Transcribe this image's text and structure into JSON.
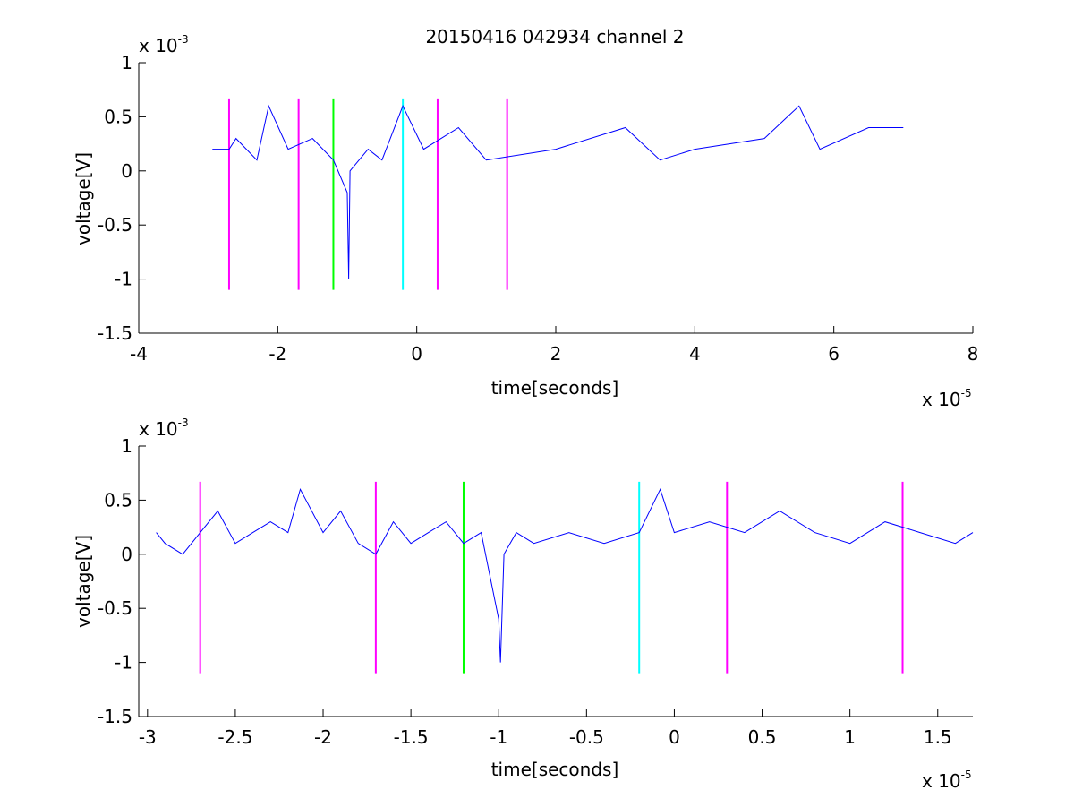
{
  "figure": {
    "title": "20150416 042934 channel 2"
  },
  "chart_data": [
    {
      "type": "line",
      "title": "20150416 042934 channel 2",
      "xlabel": "time[seconds]",
      "ylabel": "voltage[V]",
      "x_exponent_label": "x 10",
      "x_exponent": "-5",
      "y_exponent_label": "x 10",
      "y_exponent": "-3",
      "xlim": [
        -4,
        8
      ],
      "ylim": [
        -1.5,
        1
      ],
      "xticks": [
        "-4",
        "-2",
        "0",
        "2",
        "4",
        "6",
        "8"
      ],
      "yticks": [
        "1",
        "0.5",
        "0",
        "-0.5",
        "-1",
        "-1.5"
      ],
      "grid": false,
      "series": [
        {
          "style": "blue noisy trace",
          "color": "#0000ff",
          "x": [
            -2.94,
            -2.7,
            -2.6,
            -2.3,
            -2.13,
            -1.85,
            -1.5,
            -1.2,
            -1.0,
            -0.98,
            -0.96,
            -0.7,
            -0.5,
            -0.2,
            0.1,
            0.6,
            1.0,
            2.0,
            3.0,
            3.5,
            4.0,
            5.0,
            5.5,
            5.8,
            6.5,
            7.0
          ],
          "y": [
            0.2,
            0.2,
            0.3,
            0.1,
            0.6,
            0.2,
            0.3,
            0.1,
            -0.2,
            -1.0,
            0.0,
            0.2,
            0.1,
            0.6,
            0.2,
            0.4,
            0.1,
            0.2,
            0.4,
            0.1,
            0.2,
            0.3,
            0.6,
            0.2,
            0.4,
            0.4
          ]
        }
      ],
      "markers": [
        {
          "x": -2.7,
          "color": "#ff00ff"
        },
        {
          "x": -1.7,
          "color": "#ff00ff"
        },
        {
          "x": -1.2,
          "color": "#00ff00"
        },
        {
          "x": -0.2,
          "color": "#00ffff"
        },
        {
          "x": 0.3,
          "color": "#ff00ff"
        },
        {
          "x": 1.3,
          "color": "#ff00ff"
        }
      ],
      "marker_range": [
        -1.1,
        0.67
      ]
    },
    {
      "type": "line",
      "title": "",
      "xlabel": "time[seconds]",
      "ylabel": "voltage[V]",
      "x_exponent_label": "x 10",
      "x_exponent": "-5",
      "y_exponent_label": "x 10",
      "y_exponent": "-3",
      "xlim": [
        -3.05,
        1.7
      ],
      "ylim": [
        -1.5,
        1
      ],
      "xticks": [
        "-3",
        "-2.5",
        "-2",
        "-1.5",
        "-1",
        "-0.5",
        "0",
        "0.5",
        "1",
        "1.5"
      ],
      "xtick_values": [
        -3,
        -2.5,
        -2,
        -1.5,
        -1,
        -0.5,
        0,
        0.5,
        1,
        1.5
      ],
      "yticks": [
        "1",
        "0.5",
        "0",
        "-0.5",
        "-1",
        "-1.5"
      ],
      "grid": false,
      "series": [
        {
          "style": "blue noisy trace",
          "color": "#0000ff",
          "x": [
            -2.95,
            -2.9,
            -2.8,
            -2.7,
            -2.6,
            -2.5,
            -2.4,
            -2.3,
            -2.2,
            -2.13,
            -2.0,
            -1.9,
            -1.8,
            -1.7,
            -1.6,
            -1.5,
            -1.4,
            -1.3,
            -1.2,
            -1.1,
            -1.0,
            -0.99,
            -0.97,
            -0.9,
            -0.8,
            -0.6,
            -0.4,
            -0.2,
            -0.08,
            0.0,
            0.2,
            0.4,
            0.6,
            0.8,
            1.0,
            1.2,
            1.4,
            1.6,
            1.7
          ],
          "y": [
            0.2,
            0.1,
            0.0,
            0.2,
            0.4,
            0.1,
            0.2,
            0.3,
            0.2,
            0.6,
            0.2,
            0.4,
            0.1,
            0.0,
            0.3,
            0.1,
            0.2,
            0.3,
            0.1,
            0.2,
            -0.6,
            -1.0,
            0.0,
            0.2,
            0.1,
            0.2,
            0.1,
            0.2,
            0.6,
            0.2,
            0.3,
            0.2,
            0.4,
            0.2,
            0.1,
            0.3,
            0.2,
            0.1,
            0.2
          ]
        }
      ],
      "markers": [
        {
          "x": -2.7,
          "color": "#ff00ff"
        },
        {
          "x": -1.7,
          "color": "#ff00ff"
        },
        {
          "x": -1.2,
          "color": "#00ff00"
        },
        {
          "x": -0.2,
          "color": "#00ffff"
        },
        {
          "x": 0.3,
          "color": "#ff00ff"
        },
        {
          "x": 1.3,
          "color": "#ff00ff"
        }
      ],
      "marker_range": [
        -1.1,
        0.67
      ]
    }
  ]
}
